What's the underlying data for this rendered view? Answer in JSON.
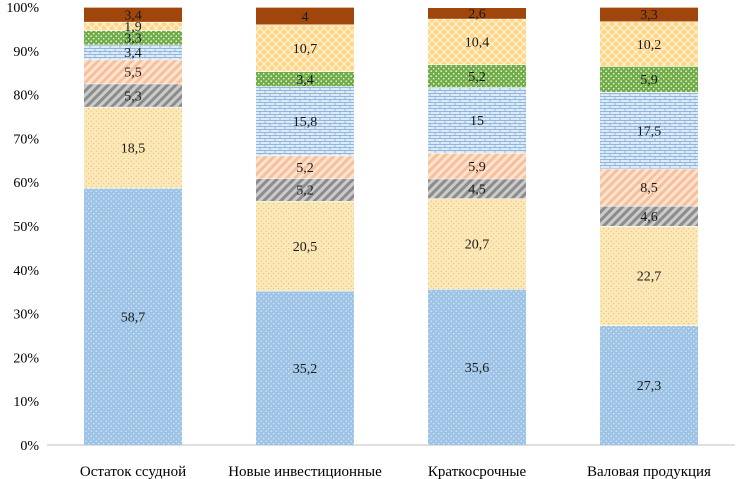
{
  "chart_data": {
    "type": "bar",
    "stacked": true,
    "percent": true,
    "title": "",
    "xlabel": "",
    "ylabel": "",
    "ylim": [
      0,
      100
    ],
    "yticks": [
      "0%",
      "10%",
      "20%",
      "30%",
      "40%",
      "50%",
      "60%",
      "70%",
      "80%",
      "90%",
      "100%"
    ],
    "categories": [
      "Остаток ссудной",
      "Новые инвестиционные",
      "Краткосрочные",
      "Валовая продукция"
    ],
    "series": [
      {
        "values": [
          58.7,
          35.2,
          35.6,
          27.3
        ],
        "labels": [
          "58,7",
          "35,2",
          "35,6",
          "27,3"
        ],
        "color": "#9dc3e6",
        "pattern": "dots"
      },
      {
        "values": [
          18.5,
          20.5,
          20.7,
          22.7
        ],
        "labels": [
          "18,5",
          "20,5",
          "20,7",
          "22,7"
        ],
        "color": "#fde9b8",
        "pattern": "dots"
      },
      {
        "values": [
          5.3,
          5.2,
          4.5,
          4.6
        ],
        "labels": [
          "5,3",
          "5,2",
          "4,5",
          "4,6"
        ],
        "color": "#8c8c8c",
        "pattern": "diag"
      },
      {
        "values": [
          5.5,
          5.2,
          5.9,
          8.5
        ],
        "labels": [
          "5,5",
          "5,2",
          "5,9",
          "8,5"
        ],
        "color": "#f7c09a",
        "pattern": "diag"
      },
      {
        "values": [
          3.4,
          15.8,
          15.0,
          17.5
        ],
        "labels": [
          "3,4",
          "15,8",
          "15",
          "17,5"
        ],
        "color": "#ddebf7",
        "pattern": "brick"
      },
      {
        "values": [
          3.3,
          3.4,
          5.2,
          5.9
        ],
        "labels": [
          "3,3",
          "3,4",
          "5,2",
          "5,9"
        ],
        "color": "#70ad47",
        "pattern": "dots"
      },
      {
        "values": [
          1.9,
          10.7,
          10.4,
          10.2
        ],
        "labels": [
          "1,9",
          "10,7",
          "10,4",
          "10,2"
        ],
        "color": "#ffd685",
        "pattern": "cross"
      },
      {
        "values": [
          3.4,
          4.0,
          2.6,
          3.3
        ],
        "labels": [
          "3,4",
          "4",
          "2,6",
          "3,3"
        ],
        "color": "#a0460d",
        "pattern": "none"
      }
    ]
  }
}
